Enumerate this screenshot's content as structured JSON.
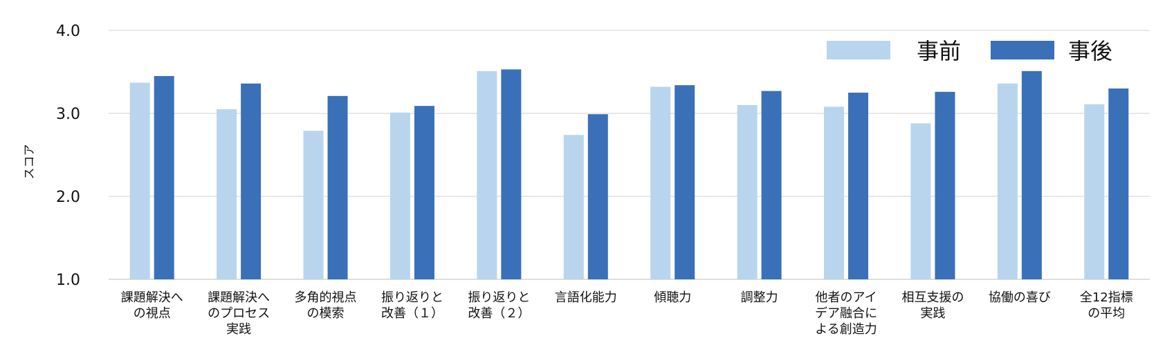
{
  "chart_data": {
    "type": "bar",
    "ylabel": "スコア",
    "ylim": [
      1.0,
      4.0
    ],
    "yticks": [
      "1.0",
      "2.0",
      "3.0",
      "4.0"
    ],
    "grid": true,
    "legend_position": "top-right",
    "categories": [
      [
        "課題解決へ",
        "の視点"
      ],
      [
        "課題解決へ",
        "のプロセス",
        "実践"
      ],
      [
        "多角的視点",
        "の模索"
      ],
      [
        "振り返りと",
        "改善（１）"
      ],
      [
        "振り返りと",
        "改善（２）"
      ],
      [
        "言語化能力"
      ],
      [
        "傾聴力"
      ],
      [
        "調整力"
      ],
      [
        "他者のアイ",
        "デア融合に",
        "よる創造力"
      ],
      [
        "相互支援の",
        "実践"
      ],
      [
        "協働の喜び"
      ],
      [
        "全12指標",
        "の平均"
      ]
    ],
    "series": [
      {
        "name": "事前",
        "color": "#b8d5ed",
        "values": [
          3.37,
          3.05,
          2.79,
          3.01,
          3.51,
          2.74,
          3.32,
          3.1,
          3.08,
          2.88,
          3.36,
          3.11
        ]
      },
      {
        "name": "事後",
        "color": "#3a70b7",
        "values": [
          3.45,
          3.36,
          3.21,
          3.09,
          3.53,
          2.99,
          3.34,
          3.27,
          3.25,
          3.26,
          3.51,
          3.3
        ]
      }
    ]
  }
}
